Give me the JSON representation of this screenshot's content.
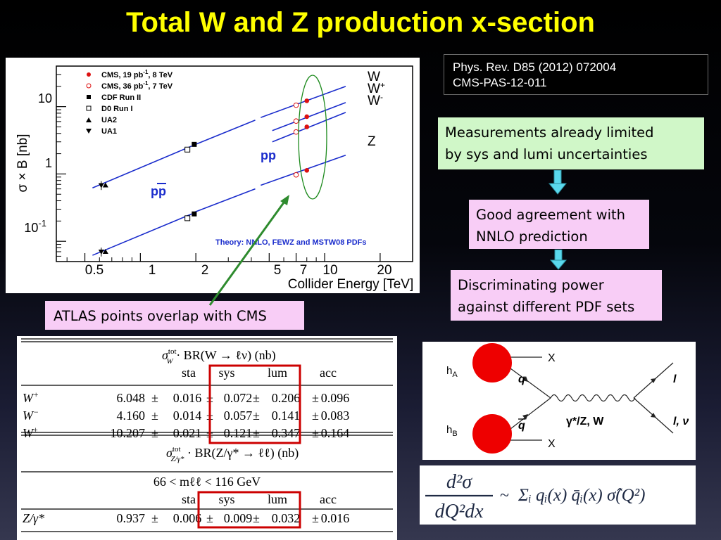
{
  "title": "Total W and Z production x-section",
  "reference": {
    "line1": "Phys. Rev. D85 (2012) 072004",
    "line2": "CMS-PAS-12-011"
  },
  "callouts": {
    "limited": {
      "line1": "Measurements already limited",
      "line2": "by sys and lumi uncertainties"
    },
    "agreement": {
      "line1": "Good agreement with",
      "line2": "NNLO prediction"
    },
    "discriminating": {
      "line1": "Discriminating power",
      "line2": "against different PDF sets"
    },
    "atlas": "ATLAS points overlap with CMS"
  },
  "colors": {
    "title": "#ffff00",
    "green_box": "#d0f7c8",
    "pink_box": "#f8cdf6",
    "arrow": "#5ad8ec",
    "curve": "#1a2ccc",
    "cms": "#dd1111",
    "highlight": "#cc0000",
    "ellipse": "#1d8a1d",
    "atlas_arrow": "#2e8b2e"
  },
  "plot": {
    "ylabel": "σ × B  [nb]",
    "xlabel": "Collider Energy [TeV]",
    "x_ticks": [
      "0.5",
      "1",
      "2",
      "5",
      "7",
      "10",
      "20"
    ],
    "y_ticks": [
      "10",
      "1"
    ],
    "y_tick_exp": {
      "base": "10",
      "exp": "-1"
    },
    "legend": [
      {
        "label": "CMS, 19 pb",
        "sup": "-1",
        "tail": ", 8 TeV",
        "marker": "filled-circle"
      },
      {
        "label": "CMS, 36 pb",
        "sup": "-1",
        "tail": ", 7 TeV",
        "marker": "open-circle"
      },
      {
        "label": "CDF Run II",
        "marker": "filled-square"
      },
      {
        "label": "D0 Run I",
        "marker": "open-square"
      },
      {
        "label": "UA2",
        "marker": "triangle-up"
      },
      {
        "label": "UA1",
        "marker": "triangle-down"
      }
    ],
    "curve_labels": {
      "w": "W",
      "wplus": "W",
      "wminus": "W",
      "z": "Z",
      "plus": "+",
      "minus": "-"
    },
    "pp": "pp",
    "ppbar": "pp",
    "theory": "Theory: NNLO, FEWZ and MSTW08 PDFs"
  },
  "chart_data": {
    "type": "line",
    "xlabel": "Collider Energy [TeV]",
    "ylabel": "σ × B  [nb]",
    "xscale": "log",
    "yscale": "log",
    "xlim": [
      0.35,
      30
    ],
    "ylim": [
      0.05,
      40
    ],
    "series": [
      {
        "name": "W",
        "x": [
          0.63,
          1.96,
          7,
          8
        ],
        "y": [
          0.7,
          2.5,
          10.5,
          12.2
        ]
      },
      {
        "name": "W+",
        "x": [
          7,
          8
        ],
        "y": [
          6.1,
          7.1
        ]
      },
      {
        "name": "W-",
        "x": [
          7,
          8
        ],
        "y": [
          4.2,
          5.0
        ]
      },
      {
        "name": "Z",
        "x": [
          0.63,
          1.96,
          7,
          8
        ],
        "y": [
          0.07,
          0.26,
          0.97,
          1.13
        ]
      }
    ],
    "points": [
      {
        "set": "CMS, 19 pb-1, 8 TeV",
        "x": 8,
        "y": [
          12.2,
          7.1,
          5.0,
          1.13
        ]
      },
      {
        "set": "CMS, 36 pb-1, 7 TeV",
        "x": 7,
        "y": [
          10.5,
          6.1,
          4.2,
          0.97
        ]
      },
      {
        "set": "CDF Run II",
        "x": 1.96,
        "y": [
          2.75,
          0.255
        ]
      },
      {
        "set": "D0 Run I",
        "x": 1.8,
        "y": [
          2.3,
          0.22
        ]
      },
      {
        "set": "UA2",
        "x": 0.63,
        "y": [
          0.68,
          0.07
        ]
      },
      {
        "set": "UA1",
        "x": 0.63,
        "y": [
          0.68,
          0.07
        ]
      }
    ]
  },
  "table": {
    "w_header": {
      "sigma": "σ",
      "sup": "tot",
      "sub": "W",
      "rest": " · BR(W → ℓν) (nb)"
    },
    "z_header": {
      "sigma": "σ",
      "sup": "tot",
      "sub": "Z/γ*",
      "rest": " · BR(Z/γ* → ℓℓ) (nb)"
    },
    "z_cut": "66 < mℓℓ < 116 GeV",
    "columns": [
      "sta",
      "sys",
      "lum",
      "acc"
    ],
    "w_rows": [
      {
        "label": "W",
        "sup": "+",
        "value": "6.048",
        "sta": "0.016",
        "sys": "0.072",
        "lum": "0.206",
        "acc": "0.096"
      },
      {
        "label": "W",
        "sup": "−",
        "value": "4.160",
        "sta": "0.014",
        "sys": "0.057",
        "lum": "0.141",
        "acc": "0.083"
      },
      {
        "label": "W",
        "sup": "±",
        "value": "10.207",
        "sta": "0.021",
        "sys": "0.121",
        "lum": "0.347",
        "acc": "0.164"
      }
    ],
    "z_rows": [
      {
        "label": "Z/γ*",
        "value": "0.937",
        "sta": "0.006",
        "sys": "0.009",
        "lum": "0.032",
        "acc": "0.016"
      }
    ],
    "pm": "±"
  },
  "feynman": {
    "ha": "h",
    "ha_sub": "A",
    "hb": "h",
    "hb_sub": "B",
    "q": "q",
    "qbar": "q",
    "x1": "X",
    "x2": "X",
    "boson": "γ*/Z, W",
    "l": "l",
    "l2": "l, ν"
  },
  "formula": {
    "num": "d²σ",
    "den": "dQ²dx",
    "tilde": "~",
    "rhs": "Σᵢ qᵢ(x) q̄ᵢ(x) σ̂(Q²)"
  }
}
